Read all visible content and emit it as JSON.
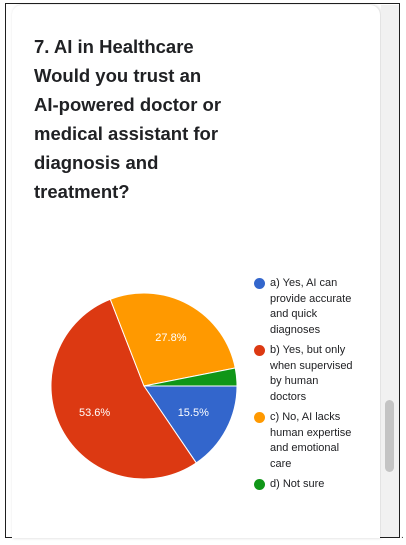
{
  "question": {
    "lines": [
      "7. AI in Healthcare",
      "Would you trust an",
      "AI-powered doctor or",
      "medical assistant for",
      "diagnosis and",
      "treatment?"
    ]
  },
  "chart_data": {
    "type": "pie",
    "slices": [
      {
        "label": "a) Yes, AI can provide accurate and quick diagnoses",
        "value": 15.5,
        "value_label": "15.5%",
        "color": "#3366cc"
      },
      {
        "label": "b) Yes, but only when supervised by human doctors",
        "value": 53.6,
        "value_label": "53.6%",
        "color": "#dc3912"
      },
      {
        "label": "c) No, AI lacks human expertise and emotional care",
        "value": 27.8,
        "value_label": "27.8%",
        "color": "#ff9900"
      },
      {
        "label": "d) Not sure",
        "value": 3.1,
        "value_label": "",
        "color": "#109618"
      }
    ],
    "legend_position": "right",
    "start": "3 o'clock, clockwise"
  },
  "legend": [
    {
      "lines": [
        "a) Yes, AI can",
        "provide accurate",
        "and quick",
        "diagnoses"
      ],
      "color": "#3366cc"
    },
    {
      "lines": [
        "b) Yes, but only",
        "when supervised",
        "by human",
        "doctors"
      ],
      "color": "#dc3912"
    },
    {
      "lines": [
        "c) No, AI lacks",
        "human expertise",
        "and emotional",
        "care"
      ],
      "color": "#ff9900"
    },
    {
      "lines": [
        "d) Not sure"
      ],
      "color": "#109618"
    }
  ],
  "footer_mark": "."
}
